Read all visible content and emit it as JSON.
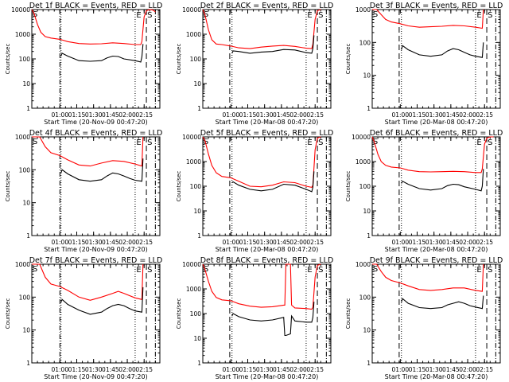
{
  "chart_data": [
    {
      "type": "line",
      "title": "Det 1f BLACK = Events, RED = LLD",
      "xlabel": "Start Time (20-Nov-09 00:47:20)",
      "ylabel": "Counts/sec",
      "ylim": [
        1,
        10000
      ],
      "yscale": "log",
      "xlim_min": [
        -12,
        35
      ],
      "x_ticks": [
        "01:00",
        "01:15",
        "01:30",
        "01:45",
        "02:00",
        "02:15"
      ],
      "x_tick_min": [
        13,
        28,
        43,
        58,
        73,
        88
      ],
      "y_ticks": [
        "1",
        "10",
        "100",
        "1000",
        "10000"
      ],
      "markers": {
        "dash_dot": [
          13,
          98
        ],
        "dotted": [
          14,
          80
        ],
        "dashed": [
          90
        ],
        "E_box": 84,
        "S_box": 93
      },
      "series": [
        {
          "name": "LLD",
          "color": "#ff0000",
          "x": [
            -12,
            -10,
            -7,
            -4,
            0,
            5,
            13,
            20,
            30,
            40,
            50,
            60,
            70,
            80,
            85,
            86,
            88,
            90,
            93,
            96,
            98
          ],
          "y": [
            10000,
            7000,
            2500,
            1200,
            800,
            700,
            620,
            500,
            420,
            400,
            410,
            450,
            420,
            380,
            380,
            500,
            5000,
            9000,
            10000,
            9500,
            8000
          ]
        },
        {
          "name": "Events",
          "color": "#000000",
          "x": [
            14,
            15,
            20,
            30,
            40,
            50,
            55,
            60,
            65,
            70,
            80,
            85,
            86,
            87
          ],
          "y": [
            130,
            170,
            130,
            85,
            80,
            85,
            110,
            130,
            125,
            100,
            85,
            75,
            120,
            400
          ]
        }
      ]
    },
    {
      "type": "line",
      "title": "Det 2f BLACK = Events, RED = LLD",
      "xlabel": "Start Time (20-Mar-08 00:47:20)",
      "ylabel": "Counts/sec",
      "ylim": [
        1,
        10000
      ],
      "yscale": "log",
      "x_ticks": [
        "01:00",
        "01:15",
        "01:30",
        "01:45",
        "02:00",
        "02:15"
      ],
      "x_tick_min": [
        13,
        28,
        43,
        58,
        73,
        88
      ],
      "y_ticks": [
        "1",
        "10",
        "100",
        "1000",
        "10000"
      ],
      "markers": {
        "dash_dot": [
          98
        ],
        "dotted": [
          14,
          80
        ],
        "dashed": [
          12,
          90
        ],
        "E_box": 84,
        "S_box": 93
      },
      "series": [
        {
          "name": "LLD",
          "color": "#ff0000",
          "x": [
            -12,
            -10,
            -7,
            -4,
            0,
            5,
            13,
            20,
            30,
            40,
            50,
            60,
            70,
            80,
            85,
            86,
            88,
            90,
            93
          ],
          "y": [
            10000,
            6000,
            1500,
            600,
            400,
            380,
            330,
            280,
            260,
            300,
            330,
            350,
            320,
            270,
            260,
            400,
            4000,
            9000,
            10000
          ]
        },
        {
          "name": "Events",
          "color": "#000000",
          "x": [
            14,
            15,
            20,
            30,
            40,
            50,
            60,
            70,
            80,
            85,
            86,
            87
          ],
          "y": [
            170,
            210,
            200,
            170,
            190,
            200,
            240,
            230,
            180,
            170,
            260,
            900
          ]
        }
      ]
    },
    {
      "type": "line",
      "title": "Det 3f BLACK = Events, RED = LLD",
      "xlabel": "Start Time (20-Mar-08 00:47:20)",
      "ylabel": "Counts/sec",
      "ylim": [
        1,
        1000
      ],
      "yscale": "log",
      "x_ticks": [
        "01:00",
        "01:15",
        "01:30",
        "01:45",
        "02:00",
        "02:15"
      ],
      "x_tick_min": [
        13,
        28,
        43,
        58,
        73,
        88
      ],
      "y_ticks": [
        "1",
        "10",
        "100",
        "1000"
      ],
      "markers": {
        "dash_dot": [
          98
        ],
        "dotted": [
          14,
          80
        ],
        "dashed": [
          12,
          90
        ],
        "E_box": 84,
        "S_box": 93
      },
      "series": [
        {
          "name": "LLD",
          "color": "#ff0000",
          "x": [
            -12,
            -8,
            -4,
            0,
            5,
            13,
            20,
            30,
            40,
            50,
            60,
            70,
            80,
            86,
            87
          ],
          "y": [
            1000,
            1000,
            700,
            500,
            420,
            370,
            320,
            290,
            300,
            310,
            330,
            320,
            290,
            270,
            1000
          ]
        },
        {
          "name": "Events",
          "color": "#000000",
          "x": [
            14,
            15,
            20,
            30,
            40,
            50,
            55,
            60,
            65,
            70,
            75,
            80,
            86,
            87
          ],
          "y": [
            60,
            80,
            60,
            42,
            38,
            42,
            55,
            65,
            60,
            50,
            42,
            38,
            35,
            100
          ]
        }
      ]
    },
    {
      "type": "line",
      "title": "Det 4f BLACK = Events, RED = LLD",
      "xlabel": "Start Time (20-Nov-09 00:47:20)",
      "ylabel": "Counts/sec",
      "ylim": [
        1,
        1000
      ],
      "yscale": "log",
      "x_ticks": [
        "01:00",
        "01:15",
        "01:30",
        "01:45",
        "02:00",
        "02:15"
      ],
      "x_tick_min": [
        13,
        28,
        43,
        58,
        73,
        88
      ],
      "y_ticks": [
        "1",
        "10",
        "100",
        "1000"
      ],
      "markers": {
        "dash_dot": [
          13,
          98
        ],
        "dotted": [
          14,
          80
        ],
        "dashed": [
          90
        ],
        "E_box": 84,
        "S_box": 93
      },
      "series": [
        {
          "name": "LLD",
          "color": "#ff0000",
          "x": [
            -12,
            -5,
            0,
            5,
            13,
            20,
            30,
            40,
            50,
            60,
            70,
            80,
            86,
            87
          ],
          "y": [
            1000,
            1000,
            500,
            330,
            270,
            200,
            140,
            130,
            160,
            190,
            180,
            150,
            130,
            1000
          ]
        },
        {
          "name": "Events",
          "color": "#000000",
          "x": [
            14,
            15,
            20,
            30,
            40,
            50,
            55,
            60,
            65,
            70,
            75,
            80,
            86,
            87
          ],
          "y": [
            80,
            100,
            75,
            50,
            45,
            50,
            65,
            80,
            75,
            65,
            55,
            48,
            45,
            220
          ]
        }
      ]
    },
    {
      "type": "line",
      "title": "Det 5f BLACK = Events, RED = LLD",
      "xlabel": "Start Time (20-Mar-08 00:47:20)",
      "ylabel": "Counts/sec",
      "ylim": [
        1,
        10000
      ],
      "yscale": "log",
      "x_ticks": [
        "01:00",
        "01:15",
        "01:30",
        "01:45",
        "02:00",
        "02:15"
      ],
      "x_tick_min": [
        13,
        28,
        43,
        58,
        73,
        88
      ],
      "y_ticks": [
        "1",
        "10",
        "100",
        "1000",
        "10000"
      ],
      "markers": {
        "dash_dot": [
          98
        ],
        "dotted": [
          14,
          80
        ],
        "dashed": [
          12,
          90
        ],
        "E_box": 84,
        "S_box": 93
      },
      "series": [
        {
          "name": "LLD",
          "color": "#ff0000",
          "x": [
            -12,
            -10,
            -7,
            -4,
            0,
            5,
            13,
            20,
            30,
            40,
            50,
            60,
            70,
            80,
            85,
            86,
            88,
            90,
            93
          ],
          "y": [
            10000,
            7000,
            2000,
            700,
            350,
            250,
            220,
            160,
            100,
            95,
            110,
            150,
            140,
            100,
            90,
            110,
            3000,
            9000,
            10000
          ]
        },
        {
          "name": "Events",
          "color": "#000000",
          "x": [
            14,
            15,
            20,
            30,
            40,
            50,
            60,
            70,
            80,
            85,
            86,
            87
          ],
          "y": [
            140,
            150,
            110,
            75,
            65,
            75,
            120,
            110,
            75,
            60,
            90,
            400
          ]
        }
      ]
    },
    {
      "type": "line",
      "title": "Det 6f BLACK = Events, RED = LLD",
      "xlabel": "Start Time (20-Mar-08 00:47:20)",
      "ylabel": "Counts/sec",
      "ylim": [
        1,
        10000
      ],
      "yscale": "log",
      "x_ticks": [
        "01:00",
        "01:15",
        "01:30",
        "01:45",
        "02:00",
        "02:15"
      ],
      "x_tick_min": [
        13,
        28,
        43,
        58,
        73,
        88
      ],
      "y_ticks": [
        "1",
        "10",
        "100",
        "1000",
        "10000"
      ],
      "markers": {
        "dash_dot": [
          98
        ],
        "dotted": [
          14,
          80
        ],
        "dashed": [
          12,
          90
        ],
        "E_box": 84,
        "S_box": 93
      },
      "series": [
        {
          "name": "LLD",
          "color": "#ff0000",
          "x": [
            -12,
            -10,
            -7,
            -4,
            0,
            5,
            13,
            20,
            30,
            40,
            50,
            60,
            70,
            80,
            85,
            86,
            88,
            90,
            93,
            96
          ],
          "y": [
            10000,
            6000,
            2000,
            1000,
            700,
            600,
            550,
            450,
            390,
            380,
            390,
            400,
            390,
            360,
            360,
            500,
            5000,
            9000,
            10000,
            10000
          ]
        },
        {
          "name": "Events",
          "color": "#000000",
          "x": [
            14,
            15,
            20,
            30,
            40,
            50,
            55,
            60,
            65,
            70,
            80,
            85,
            86,
            87
          ],
          "y": [
            130,
            160,
            120,
            80,
            70,
            80,
            105,
            120,
            115,
            95,
            75,
            65,
            100,
            500
          ]
        }
      ]
    },
    {
      "type": "line",
      "title": "Det 7f BLACK = Events, RED = LLD",
      "xlabel": "Start Time (20-Nov-09 00:47:20)",
      "ylabel": "Counts/sec",
      "ylim": [
        1,
        1000
      ],
      "yscale": "log",
      "x_ticks": [
        "01:00",
        "01:15",
        "01:30",
        "01:45",
        "02:00",
        "02:15"
      ],
      "x_tick_min": [
        13,
        28,
        43,
        58,
        73,
        88
      ],
      "y_ticks": [
        "1",
        "10",
        "100",
        "1000"
      ],
      "markers": {
        "dash_dot": [
          13,
          98
        ],
        "dotted": [
          14,
          80
        ],
        "dashed": [
          90
        ],
        "E_box": 84,
        "S_box": 93
      },
      "series": [
        {
          "name": "LLD",
          "color": "#ff0000",
          "x": [
            -12,
            -5,
            0,
            5,
            13,
            20,
            30,
            40,
            50,
            60,
            65,
            70,
            80,
            86,
            87
          ],
          "y": [
            1000,
            1000,
            400,
            250,
            210,
            160,
            100,
            80,
            100,
            130,
            150,
            130,
            95,
            85,
            1000
          ]
        },
        {
          "name": "Events",
          "color": "#000000",
          "x": [
            14,
            15,
            20,
            30,
            40,
            50,
            55,
            60,
            65,
            70,
            75,
            80,
            86,
            87
          ],
          "y": [
            70,
            85,
            60,
            40,
            30,
            35,
            45,
            55,
            60,
            55,
            45,
            38,
            35,
            200
          ]
        }
      ]
    },
    {
      "type": "line",
      "title": "Det 8f BLACK = Events, RED = LLD",
      "xlabel": "Start Time (20-Mar-08 00:47:20)",
      "ylabel": "Counts/sec",
      "ylim": [
        1,
        10000
      ],
      "yscale": "log",
      "x_ticks": [
        "01:00",
        "01:15",
        "01:30",
        "01:45",
        "02:00",
        "02:15"
      ],
      "x_tick_min": [
        13,
        28,
        43,
        58,
        73,
        88
      ],
      "y_ticks": [
        "1",
        "10",
        "100",
        "1000",
        "10000"
      ],
      "markers": {
        "dash_dot": [
          98
        ],
        "dotted": [
          14,
          80
        ],
        "dashed": [
          12,
          90
        ],
        "E_box": 84,
        "S_box": 93
      },
      "series": [
        {
          "name": "LLD",
          "color": "#ff0000",
          "x": [
            -12,
            -10,
            -7,
            -4,
            0,
            5,
            13,
            20,
            30,
            40,
            50,
            60,
            61,
            62,
            66,
            67,
            70,
            80,
            85,
            86,
            88,
            90,
            93
          ],
          "y": [
            10000,
            6000,
            2000,
            800,
            450,
            360,
            330,
            250,
            200,
            180,
            190,
            220,
            220,
            10000,
            10000,
            220,
            170,
            160,
            150,
            180,
            3000,
            9000,
            10000
          ]
        },
        {
          "name": "Events",
          "color": "#000000",
          "x": [
            14,
            15,
            20,
            30,
            40,
            50,
            60,
            61,
            62,
            66,
            67,
            70,
            80,
            85,
            86,
            87
          ],
          "y": [
            80,
            100,
            75,
            55,
            50,
            55,
            70,
            13,
            13,
            15,
            80,
            50,
            45,
            45,
            70,
            300
          ]
        }
      ]
    },
    {
      "type": "line",
      "title": "Det 9f BLACK = Events, RED = LLD",
      "xlabel": "Start Time (20-Mar-08 00:47:20)",
      "ylabel": "Counts/sec",
      "ylim": [
        1,
        1000
      ],
      "yscale": "log",
      "x_ticks": [
        "01:00",
        "01:15",
        "01:30",
        "01:45",
        "02:00",
        "02:15"
      ],
      "x_tick_min": [
        13,
        28,
        43,
        58,
        73,
        88
      ],
      "y_ticks": [
        "1",
        "10",
        "100",
        "1000"
      ],
      "markers": {
        "dash_dot": [
          98
        ],
        "dotted": [
          14,
          80
        ],
        "dashed": [
          12,
          90
        ],
        "E_box": 84,
        "S_box": 93
      },
      "series": [
        {
          "name": "LLD",
          "color": "#ff0000",
          "x": [
            -12,
            -8,
            -4,
            0,
            5,
            13,
            20,
            30,
            40,
            50,
            60,
            70,
            80,
            86,
            87
          ],
          "y": [
            1000,
            1000,
            600,
            400,
            320,
            270,
            220,
            170,
            160,
            170,
            190,
            190,
            160,
            150,
            1000
          ]
        },
        {
          "name": "Events",
          "color": "#000000",
          "x": [
            14,
            15,
            20,
            30,
            40,
            50,
            55,
            60,
            65,
            70,
            75,
            80,
            86,
            87
          ],
          "y": [
            70,
            90,
            65,
            48,
            45,
            48,
            58,
            65,
            72,
            65,
            55,
            50,
            45,
            110
          ]
        }
      ]
    }
  ],
  "panels": [
    {
      "ylabel": "Counts/sec"
    },
    {
      "ylabel": "Counts/sec"
    },
    {
      "ylabel": "Counts/sec"
    },
    {
      "ylabel": "Counts/sec"
    },
    {
      "ylabel": "Counts/sec"
    },
    {
      "ylabel": "Counts/sec"
    },
    {
      "ylabel": "Counts/sec"
    },
    {
      "ylabel": "Counts/sec"
    },
    {
      "ylabel": "Counts/sec"
    }
  ],
  "marker_labels": {
    "E": "E",
    "S": "S"
  }
}
